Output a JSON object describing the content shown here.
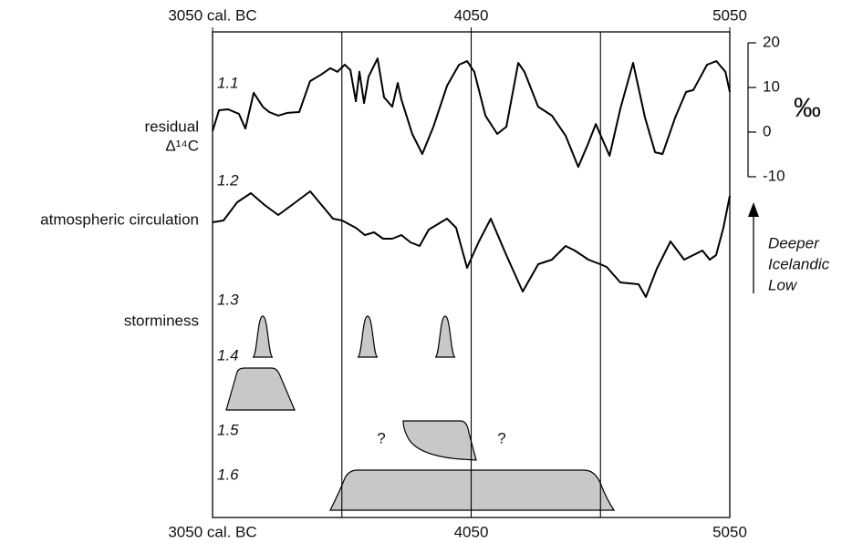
{
  "chart_data": {
    "type": "line",
    "xlim": [
      3050,
      5050
    ],
    "xticks": [
      {
        "value": 3050,
        "label": "3050 cal. BC"
      },
      4050,
      5050
    ],
    "ylim": [
      -10,
      20
    ],
    "yticks": [
      20,
      10,
      0,
      -10
    ],
    "y_unit": "‰",
    "vlines": [
      3550,
      4050,
      4550
    ],
    "row_labels": [
      "residual",
      "Δ¹⁴C",
      "atmospheric circulation",
      "storminess"
    ],
    "panel_labels": [
      "1.1",
      "1.2",
      "1.3",
      "1.4",
      "1.5",
      "1.6"
    ],
    "question_marks": [
      "?",
      "?"
    ],
    "arrow_label": [
      "Deeper",
      "Icelandic",
      "Low"
    ],
    "series": [
      {
        "name": "residual Δ¹⁴C",
        "color": "#000000",
        "x": [
          3050,
          3075,
          3110,
          3152,
          3177,
          3209,
          3244,
          3269,
          3304,
          3339,
          3385,
          3427,
          3470,
          3505,
          3533,
          3561,
          3583,
          3604,
          3618,
          3636,
          3653,
          3688,
          3713,
          3745,
          3766,
          3780,
          3822,
          3861,
          3904,
          3957,
          4003,
          4034,
          4062,
          4105,
          4151,
          4186,
          4232,
          4256,
          4309,
          4362,
          4415,
          4464,
          4500,
          4532,
          4585,
          4627,
          4676,
          4722,
          4761,
          4790,
          4839,
          4881,
          4909,
          4962,
          4998,
          5033,
          5050
        ],
        "values": [
          0.2,
          4.9,
          5.1,
          4.1,
          0.8,
          8.8,
          5.7,
          4.5,
          3.7,
          4.3,
          4.5,
          11.4,
          12.9,
          14.3,
          13.5,
          15.1,
          13.9,
          6.9,
          13.5,
          6.5,
          12.4,
          16.5,
          7.8,
          5.7,
          11.0,
          7.3,
          -0.4,
          -4.9,
          1.2,
          10.4,
          15.1,
          15.9,
          13.5,
          3.7,
          -0.4,
          1.2,
          15.5,
          13.5,
          5.7,
          3.7,
          -0.8,
          -7.8,
          -2.9,
          1.8,
          -5.3,
          5.3,
          15.5,
          3.3,
          -4.5,
          -4.9,
          3.3,
          9.0,
          9.4,
          15.1,
          15.9,
          13.5,
          9.0
        ]
      }
    ]
  }
}
